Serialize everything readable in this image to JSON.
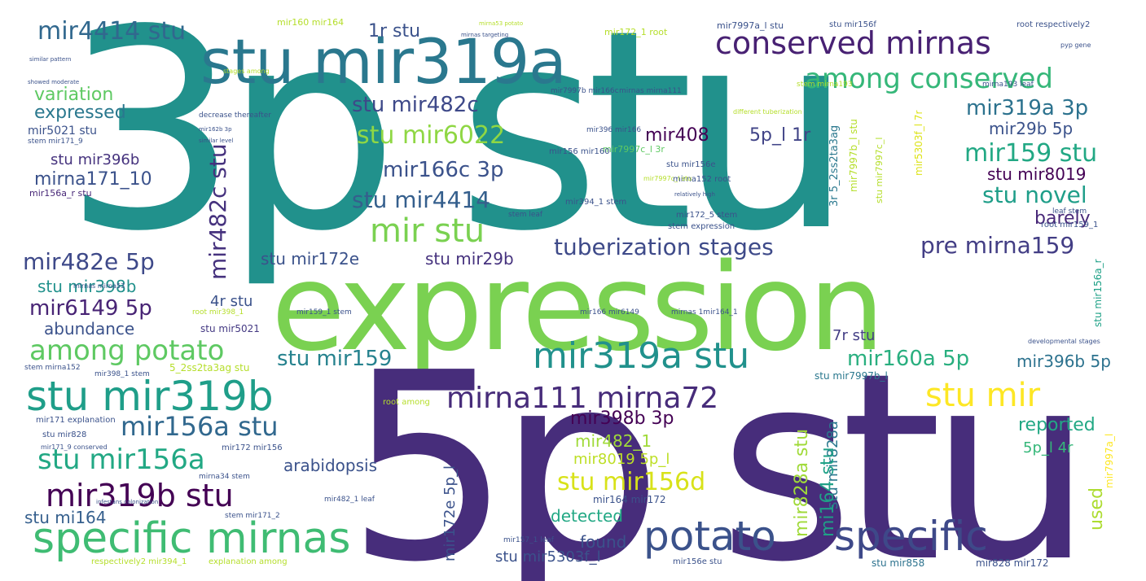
{
  "words": [
    {
      "text": "3p stu",
      "color": "#21918c"
    },
    {
      "text": "expression",
      "color": "#7ad151"
    },
    {
      "text": "5p stu",
      "color": "#472d7b"
    },
    {
      "text": "stu mir319a",
      "color": "#2a788e"
    },
    {
      "text": "conserved mirnas",
      "color": "#482173"
    },
    {
      "text": "among conserved",
      "color": "#35b779"
    },
    {
      "text": "mir4414 stu",
      "color": "#31688e"
    },
    {
      "text": "1r stu",
      "color": "#3b528b"
    },
    {
      "text": "stu mir482c",
      "color": "#3e4989"
    },
    {
      "text": "stu mir6022",
      "color": "#8fd744"
    },
    {
      "text": "mir166c 3p",
      "color": "#3b528b"
    },
    {
      "text": "mir408",
      "color": "#440154"
    },
    {
      "text": "5p_l 1r",
      "color": "#414487"
    },
    {
      "text": "mir319a 3p",
      "color": "#2c728e"
    },
    {
      "text": "mir29b 5p",
      "color": "#3b528b"
    },
    {
      "text": "mir159 stu",
      "color": "#22a884"
    },
    {
      "text": "stu mir8019",
      "color": "#440154"
    },
    {
      "text": "stu novel",
      "color": "#1f9e89"
    },
    {
      "text": "barely",
      "color": "#482878"
    },
    {
      "text": "pre mirna159",
      "color": "#433e85"
    },
    {
      "text": "stu mir4414",
      "color": "#355f8d"
    },
    {
      "text": "mir stu",
      "color": "#7ad151"
    },
    {
      "text": "tuberization stages",
      "color": "#3e4a89"
    },
    {
      "text": "variation",
      "color": "#5ec962"
    },
    {
      "text": "expressed",
      "color": "#2a788e"
    },
    {
      "text": "stu mir396b",
      "color": "#46337e"
    },
    {
      "text": "mirna171_10",
      "color": "#3b528b"
    },
    {
      "text": "mir482c stu",
      "color": "#46327e"
    },
    {
      "text": "mir482e 5p",
      "color": "#3e4989"
    },
    {
      "text": "stu mir172e",
      "color": "#3b528b"
    },
    {
      "text": "stu mir29b",
      "color": "#46327e"
    },
    {
      "text": "stu mir398b",
      "color": "#21918c"
    },
    {
      "text": "mir6149 5p",
      "color": "#482475"
    },
    {
      "text": "4r stu",
      "color": "#3b528b"
    },
    {
      "text": "abundance",
      "color": "#3b528b"
    },
    {
      "text": "stu mir5021",
      "color": "#443983"
    },
    {
      "text": "among potato",
      "color": "#5ec962"
    },
    {
      "text": "stu mir159",
      "color": "#26828e"
    },
    {
      "text": "mir319a stu",
      "color": "#21918c"
    },
    {
      "text": "mir160a 5p",
      "color": "#29af7f"
    },
    {
      "text": "mir396b 5p",
      "color": "#2c728e"
    },
    {
      "text": "7r stu",
      "color": "#433e85"
    },
    {
      "text": "stu mir319b",
      "color": "#1f9e89"
    },
    {
      "text": "mirna111 mirna72",
      "color": "#472c7a"
    },
    {
      "text": "stu mir",
      "color": "#fde725"
    },
    {
      "text": "mir156a stu",
      "color": "#31688e"
    },
    {
      "text": "mir398b 3p",
      "color": "#440154"
    },
    {
      "text": "reported",
      "color": "#22a884"
    },
    {
      "text": "stu mir156a",
      "color": "#22a884"
    },
    {
      "text": "arabidopsis",
      "color": "#3b528b"
    },
    {
      "text": "mir482_1",
      "color": "#a0da39"
    },
    {
      "text": "mir8019 5p_l",
      "color": "#bddf26"
    },
    {
      "text": "5p_l 4r",
      "color": "#35b779"
    },
    {
      "text": "mir319b stu",
      "color": "#440154"
    },
    {
      "text": "stu mir156d",
      "color": "#d8e219"
    },
    {
      "text": "stu mi164",
      "color": "#355f8d"
    },
    {
      "text": "detected",
      "color": "#22a884"
    },
    {
      "text": "used",
      "color": "#addc30"
    },
    {
      "text": "specific mirnas",
      "color": "#3fbc73"
    },
    {
      "text": "potato",
      "color": "#3b528b"
    },
    {
      "text": "specific",
      "color": "#3e4989"
    },
    {
      "text": "found",
      "color": "#3b528b"
    },
    {
      "text": "stu mir5303f_l",
      "color": "#3b528b"
    },
    {
      "text": "mir828a stu",
      "color": "#a0da39"
    },
    {
      "text": "stu mir828a",
      "color": "#2a788e"
    },
    {
      "text": "mi164 stu",
      "color": "#1fa187"
    },
    {
      "text": "mir172e 5p_l",
      "color": "#3b528b"
    },
    {
      "text": "mir164 mir172",
      "color": "#3b528b"
    },
    {
      "text": "stu mir858",
      "color": "#2c728e"
    },
    {
      "text": "mir828 mir172",
      "color": "#3b528b"
    },
    {
      "text": "mir156e stu",
      "color": "#3b528b"
    },
    {
      "text": "mir5303f_l 7r",
      "color": "#dde318"
    },
    {
      "text": "mir7997c_l 3r",
      "color": "#5ec962"
    },
    {
      "text": "mir7997a_l",
      "color": "#fde725"
    },
    {
      "text": "stu mir7997b_l",
      "color": "#2a788e"
    },
    {
      "text": "stu mir7997c_l",
      "color": "#b5de2b"
    },
    {
      "text": "mir160 mir164",
      "color": "#b5de2b"
    },
    {
      "text": "mir172_1 root",
      "color": "#b5de2b"
    },
    {
      "text": "mir7997a_l stu",
      "color": "#3b528b"
    },
    {
      "text": "stu mir156f",
      "color": "#3b528b"
    },
    {
      "text": "root respectively2",
      "color": "#3b528b"
    },
    {
      "text": "stu mir156e",
      "color": "#3b528b"
    },
    {
      "text": "mirna152 root",
      "color": "#3b528b"
    },
    {
      "text": "stem expression",
      "color": "#3b528b"
    },
    {
      "text": "mir172_5 stem",
      "color": "#3b528b"
    },
    {
      "text": "mir156 mir160",
      "color": "#3b528b"
    },
    {
      "text": "mir396 mir166",
      "color": "#3b528b"
    },
    {
      "text": "mir7997b mir166c",
      "color": "#3b528b"
    },
    {
      "text": "mirnas mirna111",
      "color": "#3b528b"
    },
    {
      "text": "mir394_1 stem",
      "color": "#3b528b"
    },
    {
      "text": "stem leaf",
      "color": "#3b528b"
    },
    {
      "text": "mir5021 stu",
      "color": "#3b528b"
    },
    {
      "text": "stem mir171_9",
      "color": "#3b528b"
    },
    {
      "text": "mir156a_r stu",
      "color": "#482878"
    },
    {
      "text": "decrease thereafter",
      "color": "#3b528b"
    },
    {
      "text": "showed moderate",
      "color": "#3b528b"
    },
    {
      "text": "similar pattern",
      "color": "#3b528b"
    },
    {
      "text": "mirnas mirna53",
      "color": "#3b528b"
    },
    {
      "text": "stem mirna152",
      "color": "#3b528b"
    },
    {
      "text": "mir398_1 stem",
      "color": "#3b528b"
    },
    {
      "text": "mir171 explanation",
      "color": "#3b528b"
    },
    {
      "text": "stu mir828",
      "color": "#3b528b"
    },
    {
      "text": "mir171_9 conserved",
      "color": "#3b528b"
    },
    {
      "text": "mir172 mir156",
      "color": "#3b528b"
    },
    {
      "text": "mirna34 stem",
      "color": "#3b528b"
    },
    {
      "text": "mir482_1 leaf",
      "color": "#3b528b"
    },
    {
      "text": "stem mir171_2",
      "color": "#3b528b"
    },
    {
      "text": "mir157_1 leaf",
      "color": "#3b528b"
    },
    {
      "text": "respectively2 mir394_1",
      "color": "#b5de2b"
    },
    {
      "text": "explanation among",
      "color": "#b5de2b"
    },
    {
      "text": "mir166 mir6149",
      "color": "#3b528b"
    },
    {
      "text": "mirnas 1mir164_1",
      "color": "#3b528b"
    },
    {
      "text": "mir159_1 stem",
      "color": "#3b528b"
    },
    {
      "text": "root mir398_1",
      "color": "#b5de2b"
    },
    {
      "text": "5_2ss2ta3ag stu",
      "color": "#b5de2b"
    },
    {
      "text": "root among",
      "color": "#b5de2b"
    },
    {
      "text": "developmental stages",
      "color": "#3b528b"
    },
    {
      "text": "root mir159_1",
      "color": "#3b528b"
    },
    {
      "text": "leaf stem",
      "color": "#3b528b"
    },
    {
      "text": "relatively high",
      "color": "#3b528b"
    },
    {
      "text": "3r 5_2ss2ta3ag",
      "color": "#2a788e"
    },
    {
      "text": "mirna193 leaf",
      "color": "#3b528b"
    },
    {
      "text": "mir7997b_l stu",
      "color": "#b5de2b"
    },
    {
      "text": "stu mir156a_r",
      "color": "#1fa187"
    },
    {
      "text": "stem mirna193",
      "color": "#b5de2b"
    },
    {
      "text": "stages among",
      "color": "#b5de2b"
    },
    {
      "text": "pyp gene",
      "color": "#3b528b"
    },
    {
      "text": "mirna53 potato",
      "color": "#b5de2b"
    },
    {
      "text": "mirnas targeting",
      "color": "#3b528b"
    },
    {
      "text": "mir162b 3p",
      "color": "#3b528b"
    },
    {
      "text": "similar level",
      "color": "#3b528b"
    },
    {
      "text": "different tuberization",
      "color": "#b5de2b"
    },
    {
      "text": "infestans colonization",
      "color": "#3b528b"
    },
    {
      "text": "mir7997c_l stu",
      "color": "#b5de2b"
    }
  ]
}
